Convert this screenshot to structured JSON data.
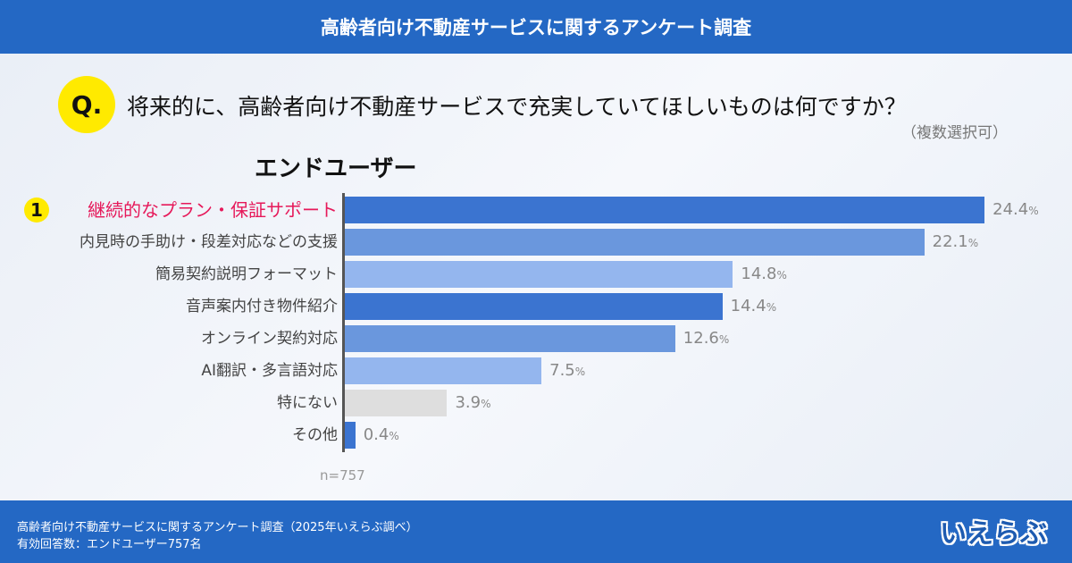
{
  "header": {
    "title": "高齢者向け不動産サービスに関するアンケート調査"
  },
  "question": {
    "badge": "Q.",
    "text": "将来的に、高齢者向け不動産サービスで充実していてほしいものは何ですか？",
    "note": "（複数選択可）"
  },
  "chart_data": {
    "type": "bar",
    "orientation": "horizontal",
    "segment": "エンドユーザー",
    "categories": [
      "継続的なプラン・保証サポート",
      "内見時の手助け・段差対応などの支援",
      "簡易契約説明フォーマット",
      "音声案内付き物件紹介",
      "オンライン契約対応",
      "AI翻訳・多言語対応",
      "特にない",
      "その他"
    ],
    "values": [
      24.4,
      22.1,
      14.8,
      14.4,
      12.6,
      7.5,
      3.9,
      0.4
    ],
    "value_labels": [
      "24.4",
      "22.1",
      "14.8",
      "14.4",
      "12.6",
      "7.5",
      "3.9",
      "0.4"
    ],
    "unit": "%",
    "colors": [
      "#3b74d0",
      "#6a97dd",
      "#94b6ee",
      "#3b74d0",
      "#6a97dd",
      "#94b6ee",
      "#dedede",
      "#3b74d0"
    ],
    "rank_badge": "1",
    "highlight_color": "#e6195a",
    "sample": "n=757"
  },
  "footer": {
    "line1": "高齢者向け不動産サービスに関するアンケート調査（2025年いえらぶ調べ）",
    "line2": "有効回答数：エンドユーザー757名",
    "logo": "いえらぶ"
  }
}
